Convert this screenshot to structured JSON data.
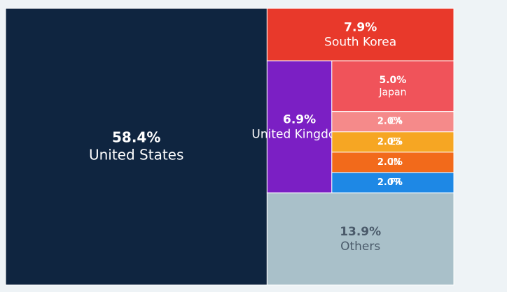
{
  "chart_data": {
    "type": "treemap",
    "categories": [
      "United States",
      "South Korea",
      "United Kingdom",
      "Japan",
      "CA",
      "ES",
      "IN",
      "FR",
      "Others"
    ],
    "values": [
      58.4,
      7.9,
      6.9,
      5.0,
      2.0,
      2.0,
      2.0,
      2.0,
      13.9
    ],
    "value_labels": [
      "58.4%",
      "7.9%",
      "6.9%",
      "5.0%",
      "2.0%",
      "2.0%",
      "2.0%",
      "2.0%",
      "13.9%"
    ],
    "colors": [
      "#0f2540",
      "#e8392b",
      "#7b1fc4",
      "#f0535a",
      "#f58a8a",
      "#f6a623",
      "#f26a1b",
      "#1e88e5",
      "#a9c0c9"
    ]
  }
}
